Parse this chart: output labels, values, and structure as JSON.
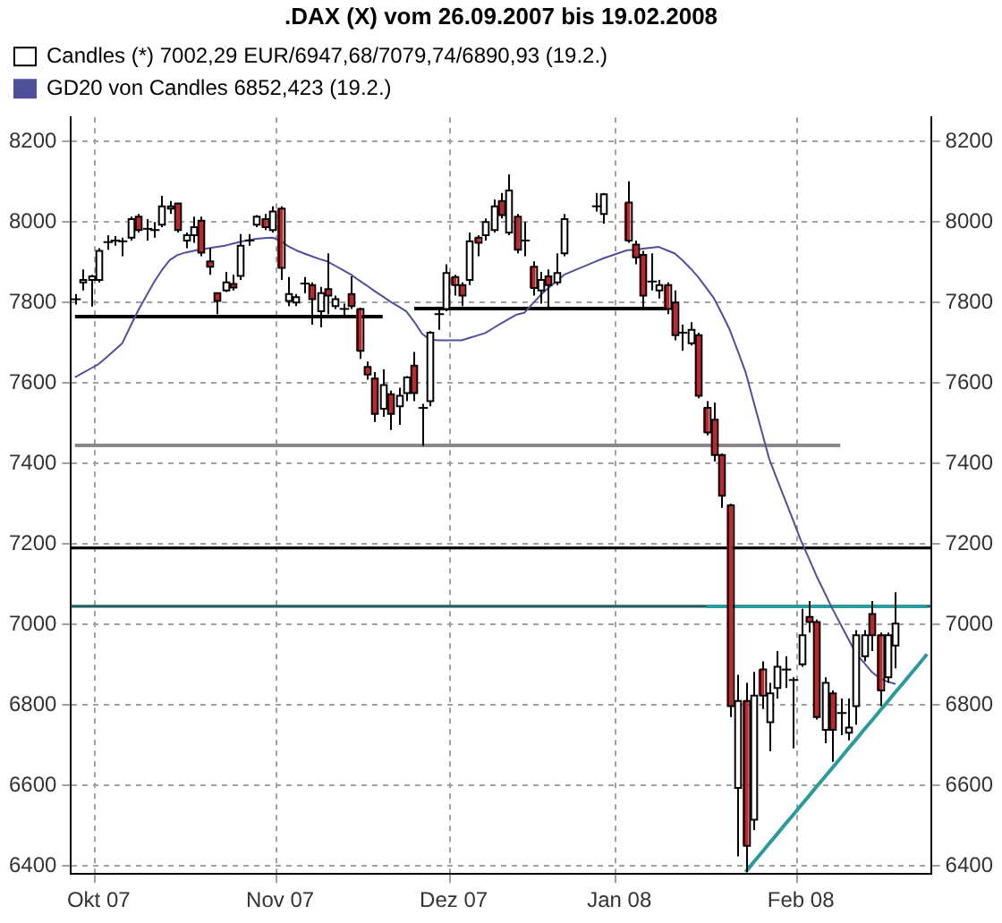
{
  "chart_data": {
    "type": "candlestick",
    "title": ".DAX (X) vom 26.09.2007 bis 19.02.2008",
    "categories": [
      null,
      null,
      null,
      "Okt 07",
      null,
      null,
      null,
      null,
      null,
      null,
      null,
      null,
      null,
      null,
      null,
      null,
      null,
      null,
      null,
      null,
      null,
      null,
      null,
      null,
      null,
      null,
      "Nov 07",
      null,
      null,
      null,
      null,
      null,
      null,
      null,
      null,
      null,
      null,
      null,
      null,
      null,
      null,
      null,
      null,
      null,
      null,
      null,
      null,
      null,
      "Dez 07",
      null,
      null,
      null,
      null,
      null,
      null,
      null,
      null,
      null,
      null,
      null,
      null,
      null,
      null,
      null,
      null,
      null,
      null,
      null,
      null,
      "Jan 08",
      null,
      null,
      null,
      null,
      null,
      null,
      null,
      null,
      null,
      null,
      null,
      null,
      null,
      null,
      null,
      null,
      null,
      null,
      null,
      null,
      null,
      null,
      "Feb 08",
      null,
      null,
      null,
      null,
      null,
      null,
      null,
      null,
      null,
      null,
      null,
      null,
      null,
      null,
      null,
      null
    ],
    "ylim": [
      6380,
      8260
    ],
    "yticks": [
      6400,
      6600,
      6800,
      7000,
      7200,
      7400,
      7600,
      7800,
      8000,
      8200
    ],
    "y2lim": [
      6380,
      8260
    ],
    "y2ticks": [
      6400,
      6600,
      6800,
      7000,
      7200,
      7400,
      7600,
      7800,
      8000,
      8200
    ],
    "grid": true,
    "legend": "top left",
    "ref_lines": [
      {
        "axis": "y",
        "value": 7190,
        "color": "#000000"
      },
      {
        "axis": "y",
        "value": 7045,
        "color": "#1f5f5f"
      }
    ],
    "series": [
      {
        "name": "Candles (*) 7002,29 EUR/6947,68/7079,74/6890,93 (19.2.)",
        "ohlc": [
          [
            7808,
            7821,
            7795,
            7808
          ],
          [
            7850,
            7882,
            7830,
            7856
          ],
          [
            7856,
            7869,
            7790,
            7865
          ],
          [
            7856,
            7935,
            7850,
            7928
          ],
          [
            7950,
            7967,
            7931,
            7950
          ],
          [
            7954,
            7965,
            7941,
            7954
          ],
          [
            7952,
            7961,
            7915,
            7952
          ],
          [
            7961,
            8013,
            7954,
            8007
          ],
          [
            8013,
            8020,
            7974,
            7980
          ],
          [
            7983,
            8007,
            7954,
            7983
          ],
          [
            7980,
            8000,
            7961,
            7980
          ],
          [
            7993,
            8065,
            7987,
            8039
          ],
          [
            8033,
            8052,
            8020,
            8039
          ],
          [
            8046,
            8048,
            7974,
            7980
          ],
          [
            7954,
            7974,
            7935,
            7967
          ],
          [
            7967,
            8013,
            7948,
            7987
          ],
          [
            8003,
            8013,
            7915,
            7924
          ],
          [
            7902,
            7935,
            7869,
            7889
          ],
          [
            7823,
            7823,
            7771,
            7804
          ],
          [
            7830,
            7876,
            7826,
            7850
          ],
          [
            7846,
            7869,
            7830,
            7837
          ],
          [
            7866,
            7970,
            7856,
            7941
          ],
          [
            7954,
            7970,
            7941,
            7954
          ],
          [
            7993,
            8017,
            7987,
            8013
          ],
          [
            8007,
            8020,
            7980,
            7987
          ],
          [
            7980,
            8039,
            7974,
            8026
          ],
          [
            8033,
            8039,
            7856,
            7886
          ],
          [
            7804,
            7863,
            7791,
            7821
          ],
          [
            7800,
            7821,
            7791,
            7813
          ],
          [
            7847,
            7863,
            7823,
            7847
          ],
          [
            7843,
            7850,
            7745,
            7808
          ],
          [
            7778,
            7839,
            7738,
            7823
          ],
          [
            7833,
            7922,
            7771,
            7817
          ],
          [
            7791,
            7817,
            7784,
            7808
          ],
          [
            7784,
            7797,
            7764,
            7784
          ],
          [
            7821,
            7865,
            7784,
            7791
          ],
          [
            7784,
            7787,
            7660,
            7680
          ],
          [
            7640,
            7653,
            7608,
            7621
          ],
          [
            7611,
            7627,
            7503,
            7523
          ],
          [
            7536,
            7634,
            7516,
            7595
          ],
          [
            7572,
            7581,
            7483,
            7523
          ],
          [
            7542,
            7588,
            7496,
            7568
          ],
          [
            7575,
            7617,
            7555,
            7614
          ],
          [
            7643,
            7677,
            7555,
            7575
          ],
          [
            7538,
            7548,
            7444,
            7538
          ],
          [
            7555,
            7729,
            7542,
            7725
          ],
          [
            7771,
            7784,
            7732,
            7771
          ],
          [
            7784,
            7895,
            7778,
            7873
          ],
          [
            7863,
            7869,
            7817,
            7843
          ],
          [
            7843,
            7850,
            7791,
            7817
          ],
          [
            7856,
            7974,
            7843,
            7952
          ],
          [
            7961,
            7967,
            7915,
            7948
          ],
          [
            7967,
            8009,
            7954,
            8000
          ],
          [
            7980,
            8056,
            7974,
            8039
          ],
          [
            8052,
            8072,
            8009,
            8017
          ],
          [
            7974,
            8118,
            7967,
            8078
          ],
          [
            8013,
            8020,
            7922,
            7931
          ],
          [
            7954,
            8000,
            7915,
            7954
          ],
          [
            7889,
            7902,
            7817,
            7836
          ],
          [
            7830,
            7876,
            7797,
            7856
          ],
          [
            7865,
            7882,
            7782,
            7843
          ],
          [
            7850,
            7922,
            7843,
            7873
          ],
          [
            7922,
            8020,
            7915,
            8007
          ],
          null,
          null,
          null,
          [
            8039,
            8072,
            8026,
            8039
          ],
          [
            8020,
            8072,
            7996,
            8069
          ],
          null,
          null,
          [
            8048,
            8101,
            7948,
            7954
          ],
          [
            7944,
            7954,
            7895,
            7912
          ],
          [
            7918,
            7928,
            7784,
            7817
          ],
          [
            7852,
            7922,
            7830,
            7852
          ],
          [
            7830,
            7856,
            7810,
            7843
          ],
          [
            7843,
            7850,
            7771,
            7784
          ],
          [
            7800,
            7830,
            7706,
            7719
          ],
          [
            7725,
            7745,
            7680,
            7725
          ],
          [
            7699,
            7751,
            7693,
            7732
          ],
          [
            7719,
            7725,
            7562,
            7568
          ],
          [
            7538,
            7555,
            7470,
            7477
          ],
          [
            7509,
            7551,
            7405,
            7421
          ],
          [
            7421,
            7425,
            7290,
            7320
          ],
          [
            7296,
            7300,
            6770,
            6797
          ],
          [
            6594,
            6875,
            6424,
            6810
          ],
          [
            6810,
            6855,
            6385,
            6450
          ],
          [
            6515,
            6882,
            6489,
            6823
          ],
          [
            6888,
            6908,
            6790,
            6823
          ],
          [
            6757,
            6855,
            6685,
            6829
          ],
          [
            6842,
            6934,
            6816,
            6895
          ],
          [
            6888,
            6921,
            6842,
            6888
          ],
          [
            6862,
            6869,
            6692,
            6862
          ],
          [
            6901,
            7039,
            6895,
            6973
          ],
          [
            7019,
            7058,
            6980,
            7006
          ],
          [
            7006,
            7012,
            6764,
            6770
          ],
          [
            6738,
            6869,
            6705,
            6855
          ],
          [
            6829,
            6836,
            6659,
            6738
          ],
          [
            6780,
            6816,
            6725,
            6780
          ],
          [
            6731,
            6816,
            6712,
            6744
          ],
          [
            6797,
            6986,
            6751,
            6973
          ],
          [
            6921,
            6986,
            6908,
            6973
          ],
          [
            7026,
            7058,
            6934,
            6973
          ],
          [
            6973,
            6980,
            6797,
            6836
          ],
          [
            6869,
            6980,
            6855,
            6973
          ],
          [
            6947.68,
            7079.74,
            6890.93,
            7002.29
          ],
          null,
          null,
          null,
          null
        ],
        "colors": [
          "#000000",
          "#ffffff",
          "#ffffff",
          "#ffffff",
          "#000000",
          "#000000",
          "#000000",
          "#ffffff",
          "#c0272d",
          "#000000",
          "#000000",
          "#ffffff",
          "#ffffff",
          "#c0272d",
          "#ffffff",
          "#ffffff",
          "#c0272d",
          "#c0272d",
          "#c0272d",
          "#ffffff",
          "#c0272d",
          "#ffffff",
          "#000000",
          "#ffffff",
          "#c0272d",
          "#ffffff",
          "#c0272d",
          "#ffffff",
          "#ffffff",
          "#000000",
          "#c0272d",
          "#ffffff",
          "#c0272d",
          "#ffffff",
          "#000000",
          "#c0272d",
          "#c0272d",
          "#c0272d",
          "#c0272d",
          "#ffffff",
          "#c0272d",
          "#ffffff",
          "#ffffff",
          "#c0272d",
          "#000000",
          "#ffffff",
          "#000000",
          "#ffffff",
          "#c0272d",
          "#c0272d",
          "#ffffff",
          "#c0272d",
          "#ffffff",
          "#ffffff",
          "#c0272d",
          "#ffffff",
          "#c0272d",
          "#000000",
          "#c0272d",
          "#ffffff",
          "#c0272d",
          "#ffffff",
          "#ffffff",
          null,
          null,
          null,
          "#000000",
          "#ffffff",
          null,
          null,
          "#c0272d",
          "#c0272d",
          "#c0272d",
          "#000000",
          "#ffffff",
          "#c0272d",
          "#c0272d",
          "#000000",
          "#ffffff",
          "#c0272d",
          "#c0272d",
          "#c0272d",
          "#c0272d",
          "#c0272d",
          "#ffffff",
          "#c0272d",
          "#ffffff",
          "#c0272d",
          "#ffffff",
          "#ffffff",
          "#000000",
          "#000000",
          "#ffffff",
          "#c0272d",
          "#c0272d",
          "#ffffff",
          "#c0272d",
          "#000000",
          "#ffffff",
          "#ffffff",
          "#ffffff",
          "#c0272d",
          "#c0272d",
          "#ffffff",
          "#ffffff",
          null,
          null,
          null,
          null
        ]
      },
      {
        "type": "line",
        "name": "GD20 von Candles 6852,423 (19.2.)",
        "color": "#50509a",
        "values": [
          7614,
          7625,
          7636,
          7647,
          7664,
          7681,
          7699,
          7740,
          7780,
          7815,
          7850,
          7880,
          7905,
          7918,
          7924,
          7928,
          7932,
          7935,
          7938,
          7941,
          7946,
          7951,
          7955,
          7958,
          7960,
          7961,
          7955,
          7940,
          7930,
          7922,
          7915,
          7908,
          7902,
          7891,
          7880,
          7869,
          7855,
          7842,
          7828,
          7815,
          7802,
          7790,
          7778,
          7752,
          7722,
          7708,
          7706,
          7706,
          7706,
          7706,
          7712,
          7718,
          7724,
          7736,
          7748,
          7759,
          7770,
          7775,
          7797,
          7818,
          7836,
          7852,
          7869,
          null,
          null,
          null,
          7902,
          7910,
          null,
          null,
          7930,
          7931,
          7934,
          7936,
          7938,
          7930,
          7922,
          7905,
          7885,
          7863,
          7837,
          7810,
          7772,
          7732,
          7680,
          7627,
          7555,
          7483,
          7411,
          7360,
          7310,
          7260,
          7209,
          7165,
          7120,
          7080,
          7039,
          7002,
          6965,
          6927,
          6905,
          6882,
          6866,
          6858,
          6852,
          null,
          null,
          null,
          null
        ]
      },
      {
        "type": "line",
        "color": "#000000",
        "values": [
          7765,
          7765,
          7765,
          7765,
          7765,
          7765,
          7765,
          7765,
          7765,
          7765,
          7765,
          7765,
          7765,
          7765,
          7765,
          7765,
          7765,
          7765,
          7765,
          7765,
          7765,
          7765,
          7765,
          7765,
          7765,
          7765,
          7765,
          7765,
          7765,
          7765,
          7765,
          7765,
          7765,
          7765,
          7765,
          7765,
          7765,
          7765,
          7765,
          7765,
          null,
          null,
          null,
          null,
          null,
          null,
          null,
          null,
          null,
          null,
          null,
          null,
          null,
          null,
          null,
          null,
          null,
          null,
          null,
          null,
          null,
          null,
          null,
          null,
          null,
          null,
          null,
          null,
          null,
          null,
          null,
          null,
          null,
          null,
          null,
          null,
          null,
          null,
          null,
          null,
          null,
          null,
          null,
          null,
          null,
          null,
          null,
          null,
          null,
          null,
          null,
          null,
          null,
          null,
          null,
          null,
          null,
          null,
          null,
          null,
          null,
          null,
          null,
          null,
          null,
          null,
          null,
          null,
          null
        ]
      },
      {
        "type": "line",
        "color": "#000000",
        "values": [
          null,
          null,
          null,
          null,
          null,
          null,
          null,
          null,
          null,
          null,
          null,
          null,
          null,
          null,
          null,
          null,
          null,
          null,
          null,
          null,
          null,
          null,
          null,
          null,
          null,
          null,
          null,
          null,
          null,
          null,
          null,
          null,
          null,
          null,
          null,
          null,
          null,
          null,
          null,
          null,
          null,
          null,
          null,
          7785,
          7785,
          7785,
          7785,
          7785,
          7785,
          7785,
          7785,
          7785,
          7785,
          7785,
          7785,
          7785,
          7785,
          7785,
          7785,
          7785,
          7785,
          7785,
          7785,
          7785,
          7785,
          7785,
          7785,
          7785,
          7785,
          7785,
          7785,
          7785,
          7785,
          7785,
          7785,
          7785,
          null,
          null,
          null,
          null,
          null,
          null,
          null,
          null,
          null,
          null,
          null,
          null,
          null,
          null,
          null,
          null,
          null,
          null,
          null,
          null,
          null,
          null,
          null,
          null,
          null,
          null,
          null,
          null,
          null,
          null,
          null,
          null,
          null
        ]
      },
      {
        "type": "line",
        "color": "#888888",
        "values": [
          7445,
          7445,
          7445,
          7445,
          7445,
          7445,
          7445,
          7445,
          7445,
          7445,
          7445,
          7445,
          7445,
          7445,
          7445,
          7445,
          7445,
          7445,
          7445,
          7445,
          7445,
          7445,
          7445,
          7445,
          7445,
          7445,
          7445,
          7445,
          7445,
          7445,
          7445,
          7445,
          7445,
          7445,
          7445,
          7445,
          7445,
          7445,
          7445,
          7445,
          7445,
          7445,
          7445,
          7445,
          7445,
          7445,
          7445,
          7445,
          7445,
          7445,
          7445,
          7445,
          7445,
          7445,
          7445,
          7445,
          7445,
          7445,
          7445,
          7445,
          7445,
          7445,
          7445,
          7445,
          7445,
          7445,
          7445,
          7445,
          7445,
          7445,
          7445,
          7445,
          7445,
          7445,
          7445,
          7445,
          7445,
          7445,
          7445,
          7445,
          7445,
          7445,
          7445,
          7445,
          7445,
          7445,
          7445,
          7445,
          7445,
          7445,
          7445,
          7445,
          7445,
          7445,
          7445,
          7445,
          7445,
          7445,
          null,
          null,
          null,
          null,
          null,
          null,
          null,
          null,
          null,
          null,
          null
        ]
      },
      {
        "type": "line",
        "color": "#2a9a9a",
        "values": [
          null,
          null,
          null,
          null,
          null,
          null,
          null,
          null,
          null,
          null,
          null,
          null,
          null,
          null,
          null,
          null,
          null,
          null,
          null,
          null,
          null,
          null,
          null,
          null,
          null,
          null,
          null,
          null,
          null,
          null,
          null,
          null,
          null,
          null,
          null,
          null,
          null,
          null,
          null,
          null,
          null,
          null,
          null,
          null,
          null,
          null,
          null,
          null,
          null,
          null,
          null,
          null,
          null,
          null,
          null,
          null,
          null,
          null,
          null,
          null,
          null,
          null,
          null,
          null,
          null,
          null,
          null,
          null,
          null,
          null,
          null,
          null,
          null,
          null,
          null,
          null,
          null,
          null,
          null,
          null,
          7045,
          7045,
          7045,
          7045,
          7045,
          7045,
          7045,
          7045,
          7045,
          7045,
          7045,
          7045,
          7045,
          7045,
          7045,
          7045,
          7045,
          7045,
          7045,
          7045,
          7045,
          7045,
          7045,
          7045,
          7045,
          7045,
          7045,
          7045,
          7045
        ]
      },
      {
        "type": "line",
        "color": "#2a9a9a",
        "values": [
          null,
          null,
          null,
          null,
          null,
          null,
          null,
          null,
          null,
          null,
          null,
          null,
          null,
          null,
          null,
          null,
          null,
          null,
          null,
          null,
          null,
          null,
          null,
          null,
          null,
          null,
          null,
          null,
          null,
          null,
          null,
          null,
          null,
          null,
          null,
          null,
          null,
          null,
          null,
          null,
          null,
          null,
          null,
          null,
          null,
          null,
          null,
          null,
          null,
          null,
          null,
          null,
          null,
          null,
          null,
          null,
          null,
          null,
          null,
          null,
          null,
          null,
          null,
          null,
          null,
          null,
          null,
          null,
          null,
          null,
          null,
          null,
          null,
          null,
          null,
          null,
          null,
          null,
          null,
          null,
          null,
          null,
          null,
          null,
          null,
          6385,
          6409,
          6432,
          6456,
          6479,
          6503,
          6526,
          6550,
          6573,
          6597,
          6620,
          6644,
          6667,
          6691,
          6714,
          6738,
          6761,
          6785,
          6808,
          6832,
          6855,
          6879,
          6902,
          6926
        ]
      }
    ]
  }
}
